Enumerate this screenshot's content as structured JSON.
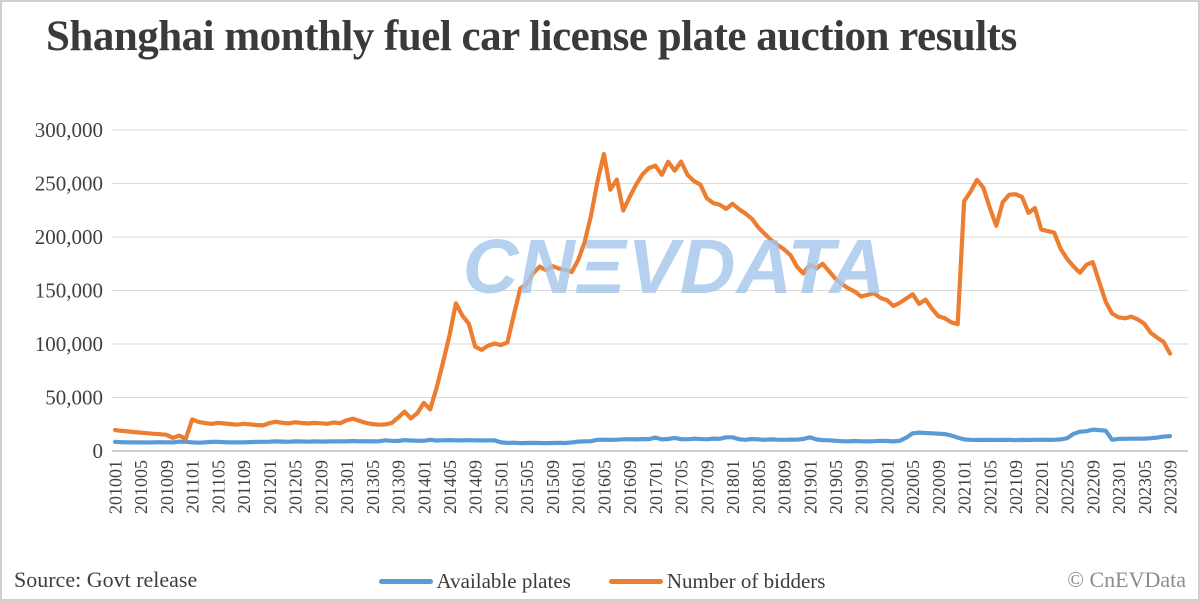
{
  "title": "Shanghai monthly fuel car license plate auction results",
  "watermark": {
    "text": "CNEVDATA",
    "display": "CNΞVDATA"
  },
  "source_label": "Source: Govt release",
  "copyright": "© CnEVData",
  "legend": {
    "items": [
      {
        "label": "Available plates"
      },
      {
        "label": "Number of bidders"
      }
    ]
  },
  "chart_data": {
    "type": "line",
    "title": "Shanghai monthly fuel car license plate auction results",
    "xlabel": "",
    "ylabel": "",
    "ylim": [
      0,
      300000
    ],
    "y_ticks": [
      0,
      50000,
      100000,
      150000,
      200000,
      250000,
      300000
    ],
    "grid": true,
    "legend_position": "bottom",
    "x_tick_every": 4,
    "x_tick_labels": [
      "201001",
      "201005",
      "201009",
      "201101",
      "201105",
      "201109",
      "201201",
      "201205",
      "201209",
      "201301",
      "201305",
      "201309",
      "201401",
      "201405",
      "201409",
      "201501",
      "201505",
      "201509",
      "201601",
      "201605",
      "201609",
      "201701",
      "201705",
      "201709",
      "201801",
      "201805",
      "201809",
      "201901",
      "201905",
      "201909",
      "202001",
      "202005",
      "202009",
      "202101",
      "202105",
      "202109",
      "202201",
      "202205",
      "202209",
      "202301",
      "202305",
      "202309"
    ],
    "colors": {
      "grid": "#d9d9d9",
      "axis": "#c0c0c0",
      "tick_text": "#404040",
      "watermark": "#a6c8ec"
    },
    "series": [
      {
        "name": "Available plates",
        "color": "#5b9bd5",
        "values": [
          8500,
          8200,
          8000,
          8100,
          8000,
          7900,
          8000,
          8200,
          8100,
          8000,
          8800,
          8600,
          8000,
          7800,
          8000,
          8500,
          8500,
          8200,
          8000,
          8100,
          8000,
          8300,
          8500,
          8600,
          8700,
          9000,
          8800,
          8600,
          9000,
          8900,
          8700,
          9000,
          8800,
          8900,
          9100,
          9000,
          9000,
          9300,
          9000,
          9200,
          9000,
          9100,
          10000,
          9500,
          9300,
          10200,
          9800,
          9600,
          9500,
          10500,
          9800,
          10000,
          10200,
          10000,
          9900,
          10100,
          10000,
          9800,
          10000,
          9900,
          8000,
          7600,
          7800,
          7400,
          7500,
          7600,
          7500,
          7400,
          7500,
          7600,
          7500,
          7900,
          8800,
          9000,
          9200,
          10500,
          10600,
          10400,
          10600,
          10900,
          11000,
          10800,
          11200,
          11000,
          12500,
          10800,
          11200,
          12200,
          11000,
          10900,
          11500,
          11200,
          10900,
          11600,
          11300,
          12800,
          12800,
          11000,
          10500,
          11200,
          10800,
          10500,
          10800,
          10600,
          10500,
          10700,
          10600,
          11200,
          12800,
          10800,
          10200,
          10000,
          9500,
          9200,
          9000,
          9300,
          9100,
          9000,
          9200,
          9500,
          9300,
          9000,
          9500,
          12500,
          16500,
          17200,
          16800,
          16500,
          16200,
          15800,
          14500,
          12500,
          10800,
          10500,
          10300,
          10500,
          10400,
          10300,
          10500,
          10400,
          10200,
          10400,
          10300,
          10500,
          10600,
          10400,
          10500,
          10800,
          12000,
          16000,
          18000,
          18500,
          20000,
          19500,
          19000,
          10500,
          11300,
          11400,
          11500,
          11500,
          11600,
          12000,
          12500,
          13500,
          13900
        ]
      },
      {
        "name": "Number of bidders",
        "color": "#ed7d31",
        "values": [
          19600,
          18900,
          18300,
          17700,
          17200,
          16600,
          16100,
          15700,
          15100,
          12200,
          14400,
          11500,
          29500,
          27200,
          26100,
          25300,
          26300,
          25700,
          25100,
          24600,
          25400,
          25000,
          24300,
          23900,
          26100,
          27400,
          26400,
          25800,
          26900,
          26200,
          25700,
          26300,
          25900,
          25400,
          26600,
          26000,
          28700,
          30200,
          28100,
          26300,
          25100,
          24600,
          24900,
          26100,
          31000,
          36800,
          30500,
          35300,
          45000,
          38900,
          59000,
          83000,
          108000,
          138000,
          126500,
          119000,
          97500,
          94500,
          98500,
          100500,
          99000,
          101500,
          127000,
          152000,
          156000,
          166000,
          172300,
          169000,
          172800,
          170500,
          169200,
          167300,
          178500,
          195000,
          220000,
          252000,
          277600,
          244200,
          253600,
          224800,
          237300,
          249000,
          258500,
          264500,
          266700,
          258100,
          270300,
          262000,
          270500,
          258000,
          252200,
          249000,
          236300,
          231700,
          230200,
          226300,
          231000,
          226000,
          222000,
          217000,
          209000,
          203000,
          197000,
          192500,
          188500,
          183000,
          172300,
          166000,
          174100,
          170500,
          175000,
          168000,
          161000,
          156000,
          152000,
          149000,
          144500,
          146000,
          147500,
          143000,
          141000,
          135500,
          138500,
          142500,
          146500,
          137500,
          141500,
          133000,
          126000,
          124000,
          120300,
          118500,
          233400,
          242500,
          253500,
          246000,
          227000,
          210500,
          232500,
          239500,
          240000,
          237500,
          222500,
          227000,
          207000,
          205500,
          204000,
          189000,
          179500,
          172500,
          166500,
          174000,
          176500,
          158000,
          139500,
          128500,
          125000,
          124000,
          125500,
          123000,
          119000,
          110500,
          106000,
          102000,
          91000
        ]
      }
    ]
  }
}
